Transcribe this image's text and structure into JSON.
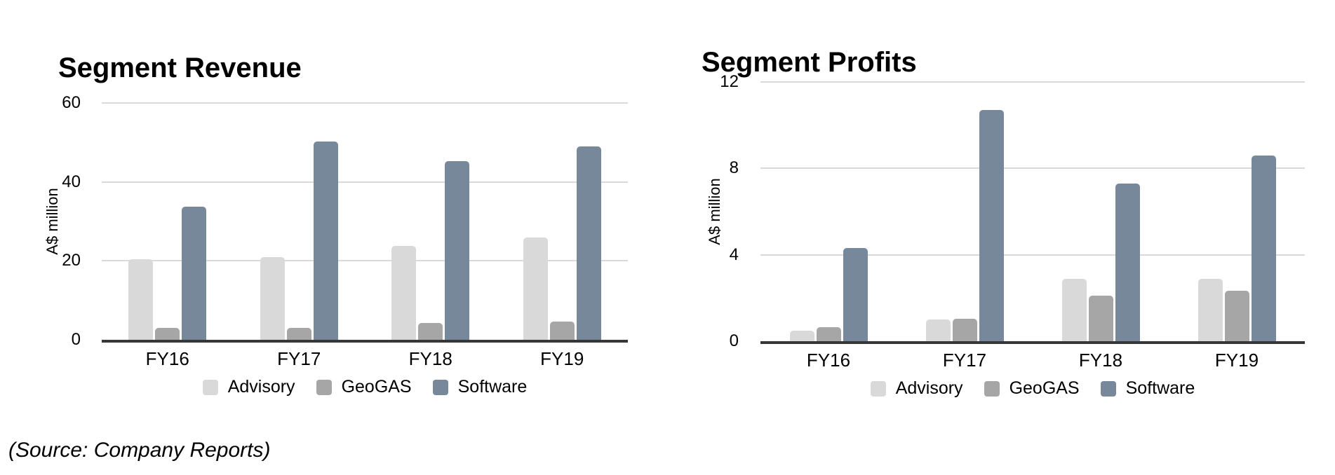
{
  "source_note": "(Source: Company Reports)",
  "colors": {
    "advisory": "#d9d9d9",
    "geogas": "#a6a6a6",
    "software": "#77889b",
    "gridline": "#d9d9d9",
    "axis_line": "#373737",
    "text": "#000000"
  },
  "chart_data": [
    {
      "type": "bar",
      "title": "Segment Revenue",
      "ylabel": "A$ million",
      "categories": [
        "FY16",
        "FY17",
        "FY18",
        "FY19"
      ],
      "yticks": [
        60,
        40,
        20,
        0
      ],
      "ylim": [
        0,
        60
      ],
      "grid": true,
      "legend_position": "bottom",
      "series": [
        {
          "name": "Advisory",
          "color_key": "advisory",
          "values": [
            20.5,
            21,
            23.8,
            26
          ]
        },
        {
          "name": "GeoGAS",
          "color_key": "geogas",
          "values": [
            3,
            3,
            4.2,
            4.7
          ]
        },
        {
          "name": "Software",
          "color_key": "software",
          "values": [
            33.8,
            50.3,
            45.2,
            49
          ]
        }
      ]
    },
    {
      "type": "bar",
      "title": "Segment Profits",
      "ylabel": "A$ million",
      "categories": [
        "FY16",
        "FY17",
        "FY18",
        "FY19"
      ],
      "yticks": [
        12,
        8,
        4,
        0
      ],
      "ylim": [
        0,
        12
      ],
      "grid": true,
      "legend_position": "bottom",
      "series": [
        {
          "name": "Advisory",
          "color_key": "advisory",
          "values": [
            0.5,
            1.0,
            2.9,
            2.9
          ]
        },
        {
          "name": "GeoGAS",
          "color_key": "geogas",
          "values": [
            0.65,
            1.05,
            2.1,
            2.35
          ]
        },
        {
          "name": "Software",
          "color_key": "software",
          "values": [
            4.3,
            10.7,
            7.3,
            8.6
          ]
        }
      ]
    }
  ]
}
